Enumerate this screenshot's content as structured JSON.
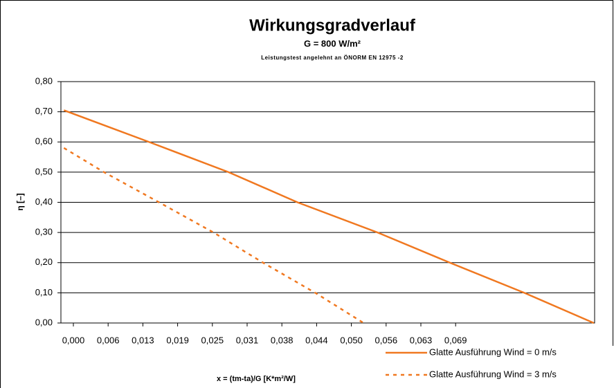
{
  "chart_data": {
    "type": "line",
    "title": "Wirkungsgradverlauf",
    "subtitle": "G = 800 W/m²",
    "note": "Leistungstest angelehnt an ÖNORM EN 12975 -2",
    "ylabel": "η [–]",
    "xlabel": "x = (tm-ta)/G [K*m²/W]",
    "xlim": [
      -0.00224,
      0.09375
    ],
    "xticks": [
      {
        "value": 0,
        "label": "0,000"
      },
      {
        "value": 0.00625,
        "label": "0,006"
      },
      {
        "value": 0.0125,
        "label": "0,013"
      },
      {
        "value": 0.01875,
        "label": "0,019"
      },
      {
        "value": 0.025,
        "label": "0,025"
      },
      {
        "value": 0.03125,
        "label": "0,031"
      },
      {
        "value": 0.0375,
        "label": "0,038"
      },
      {
        "value": 0.04375,
        "label": "0,044"
      },
      {
        "value": 0.05,
        "label": "0,050"
      },
      {
        "value": 0.05625,
        "label": "0,056"
      },
      {
        "value": 0.0625,
        "label": "0,063"
      },
      {
        "value": 0.06875,
        "label": "0,069"
      }
    ],
    "ylim": [
      0,
      0.8
    ],
    "yticks": [
      {
        "value": 0,
        "label": "0,00"
      },
      {
        "value": 0.1,
        "label": "0,10"
      },
      {
        "value": 0.2,
        "label": "0,20"
      },
      {
        "value": 0.3,
        "label": "0,30"
      },
      {
        "value": 0.4,
        "label": "0,40"
      },
      {
        "value": 0.5,
        "label": "0,50"
      },
      {
        "value": 0.6,
        "label": "0,60"
      },
      {
        "value": 0.7,
        "label": "0,70"
      },
      {
        "value": 0.8,
        "label": "0,80"
      }
    ],
    "grid": true,
    "series": [
      {
        "name": "Glatte Ausführung Wind = 0 m/s",
        "color": "#f07820",
        "dash": "solid",
        "x": [
          -0.0017,
          0.0136,
          0.0279,
          0.0403,
          0.0547,
          0.0677,
          0.0811,
          0.0936
        ],
        "values": [
          0.705,
          0.6,
          0.5,
          0.4,
          0.3,
          0.2,
          0.1,
          0
        ]
      },
      {
        "name": "Glatte Ausführung Wind = 3 m/s",
        "color": "#f07820",
        "dash": "dashed",
        "x": [
          -0.0017,
          0.0055,
          0.0154,
          0.0252,
          0.0341,
          0.0435,
          0.0522
        ],
        "values": [
          0.58,
          0.5,
          0.4,
          0.3,
          0.2,
          0.1,
          0
        ]
      }
    ]
  }
}
